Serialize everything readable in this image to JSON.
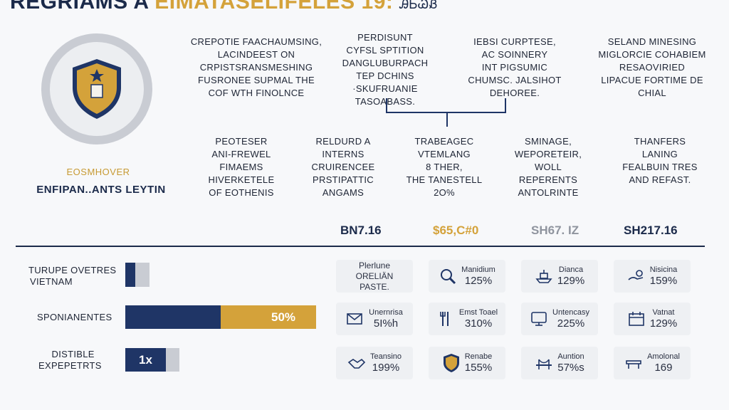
{
  "title": {
    "part1": "REGRIAMS A ",
    "part2": "EIMATASELIFELES",
    "part3": " 19: ",
    "part4": "ᎯᏏᏊᏰ"
  },
  "badge": {
    "sub": "EOSMHOVER",
    "main": "ENFIPAN..ANTS LEYTIN"
  },
  "top_blocks": [
    {
      "lines": [
        "CREPOTIE FAACHAUMSING,",
        "LACINDEEST ON",
        "CRPISTSRANSMESHING",
        "FUSRONEE SUPMAL THE",
        "COF WTH FINOLNCE"
      ]
    },
    {
      "lines": [
        "PERDISUNT",
        "CYFSL SPTITION",
        "DANGLUBURPACH",
        "TEP DCHINS",
        "·SKUFRUANIE",
        "TASOABASS."
      ]
    },
    {
      "lines": [
        "IEBSI CURPTESE,",
        "AC SOINNERY",
        "INT PIGSUMIC",
        "CHUMSC. JALSIHOT",
        "DEHOREE."
      ]
    },
    {
      "lines": [
        "SELAND MINESING",
        "MIGLORCIE COHABIEM",
        "RESAOVIRIED",
        "LIPACUE FORTIME DE",
        "CHIAL"
      ]
    }
  ],
  "mid_blocks": [
    {
      "lines": [
        "PEOTESER",
        "ANI-FREWEL",
        "FIMAEMS",
        "HIVERKETELE",
        "OF EOTHENIS"
      ]
    },
    {
      "lines": [
        "RELDURD A",
        "INTERNS",
        "CRUIRENCEE",
        "PRSTIPATTIC",
        "ANGAMS"
      ]
    },
    {
      "lines": [
        "TRABEAGEC",
        "VTEMLANG",
        "8 THER,",
        "THE TANESTELL",
        "2O%"
      ]
    },
    {
      "lines": [
        "SMINAGE,",
        "WEPORETEIR,",
        "WOLL",
        "REPERENTS",
        "ANTOLRINTE"
      ]
    },
    {
      "lines": [
        "THANFERS",
        "LANING",
        "FEALBUIN TRES",
        "AND REFAST."
      ]
    }
  ],
  "values": [
    {
      "text": "BN7.16",
      "color": "#1b2a4a"
    },
    {
      "text": "$65,C#0",
      "color": "#d4a23a"
    },
    {
      "text": "SH67. ΙΖ",
      "color": "#8f949e"
    },
    {
      "text": "SH217.16",
      "color": "#1b2a4a"
    }
  ],
  "rows": [
    {
      "label_lines": [
        "TURUPE OVETRES",
        "VIETNAM"
      ],
      "bar_fraction": 0.4,
      "bar_text": ""
    },
    {
      "label_lines": [
        "SPONIANENTES"
      ],
      "bar_fraction": 0.5,
      "bar_text": "50%"
    },
    {
      "label_lines": [
        "DISTIBLE",
        "EXPEPETRTS"
      ],
      "bar_fraction": 0.75,
      "bar_text": "1x"
    }
  ],
  "cards": [
    [
      {
        "icon": "none",
        "label": "Plerlune",
        "value": "ORELIÄN",
        "value2": "PASTE."
      },
      {
        "icon": "magnifier-icon",
        "label": "Manidium",
        "value": "125%"
      },
      {
        "icon": "ship-icon",
        "label": "Dianca",
        "value": "129%"
      },
      {
        "icon": "hand-coin-icon",
        "label": "Nisicina",
        "value": "159%"
      }
    ],
    [
      {
        "icon": "mail-icon",
        "label": "Unernrisa",
        "value": "5I%h"
      },
      {
        "icon": "fork-icon",
        "label": "Emst Toael",
        "value": "310%"
      },
      {
        "icon": "monitor-icon",
        "label": "Untencasy",
        "value": "225%"
      },
      {
        "icon": "calendar-icon",
        "label": "Vatnat",
        "value": "129%"
      }
    ],
    [
      {
        "icon": "handshake-icon",
        "label": "Teansino",
        "value": "199%"
      },
      {
        "icon": "shield-icon",
        "label": "Renabe",
        "value": "155%"
      },
      {
        "icon": "bridge-icon",
        "label": "Auntion",
        "value": "57%s"
      },
      {
        "icon": "bench-icon",
        "label": "Amolonal",
        "value": "169"
      }
    ]
  ],
  "colors": {
    "navy": "#1f3566",
    "gold": "#d4a23a",
    "grey": "#c9ccd3"
  }
}
